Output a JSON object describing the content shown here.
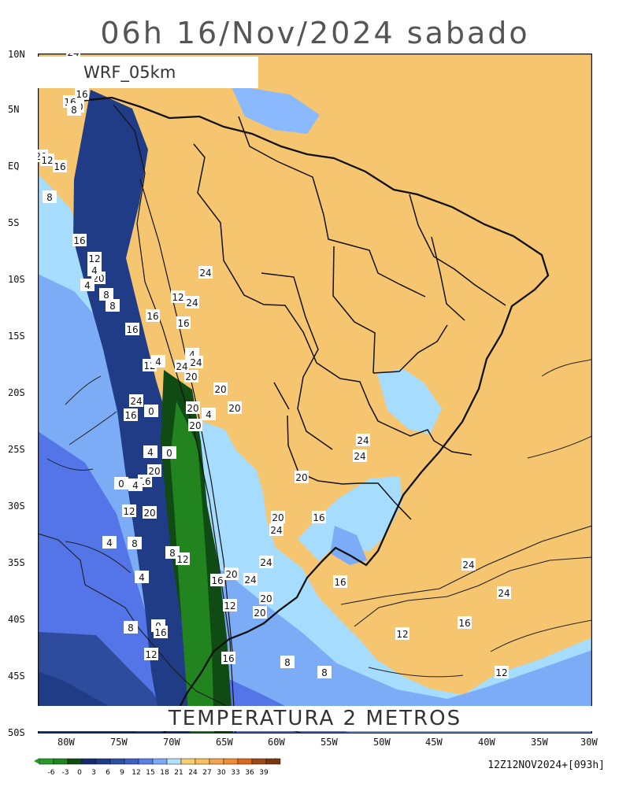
{
  "title": "06h 16/Nov/2024 sabado",
  "model": "WRF_05km",
  "bottom_title": "TEMPERATURA 2 METROS",
  "run": "12Z12NOV2024+[093h]",
  "map": {
    "lat_labels": [
      "10N",
      "5N",
      "EQ",
      "5S",
      "10S",
      "15S",
      "20S",
      "25S",
      "30S",
      "35S",
      "40S",
      "45S",
      "50S"
    ],
    "lon_labels": [
      "80W",
      "75W",
      "70W",
      "65W",
      "60W",
      "55W",
      "50W",
      "45W",
      "40W",
      "35W",
      "30W"
    ],
    "contour_labels": [
      "24",
      "16",
      "12",
      "16",
      "20",
      "16",
      "8",
      "20",
      "12",
      "16",
      "8",
      "16",
      "12",
      "20",
      "4",
      "8",
      "4",
      "8",
      "16",
      "24",
      "16",
      "12",
      "16",
      "4",
      "12",
      "4",
      "0",
      "16",
      "4",
      "20",
      "4",
      "20",
      "0",
      "20",
      "16",
      "20",
      "12",
      "8",
      "4",
      "0",
      "4",
      "8",
      "12",
      "16",
      "20",
      "20",
      "12",
      "16",
      "8",
      "0",
      "4",
      "8",
      "12",
      "16",
      "20",
      "24",
      "24",
      "20",
      "24",
      "24",
      "24",
      "24",
      "24",
      "20",
      "20",
      "20",
      "24",
      "24",
      "20",
      "16",
      "16",
      "12",
      "16",
      "12",
      "8",
      "24",
      "24"
    ]
  },
  "legend": {
    "values": [
      "-6",
      "-3",
      "0",
      "3",
      "6",
      "9",
      "12",
      "15",
      "18",
      "21",
      "24",
      "27",
      "30",
      "33",
      "36",
      "39"
    ],
    "colors": [
      "#2a9a2f",
      "#21841f",
      "#0f4b12",
      "#172b6d",
      "#213c86",
      "#2f4f9f",
      "#3f5fc1",
      "#5b7fe4",
      "#7ca9f5",
      "#b5dfff",
      "#f6cf72",
      "#f6c15c",
      "#f3a44f",
      "#ef8c35",
      "#d86a1f",
      "#9e4a18",
      "#7b3612"
    ]
  }
}
